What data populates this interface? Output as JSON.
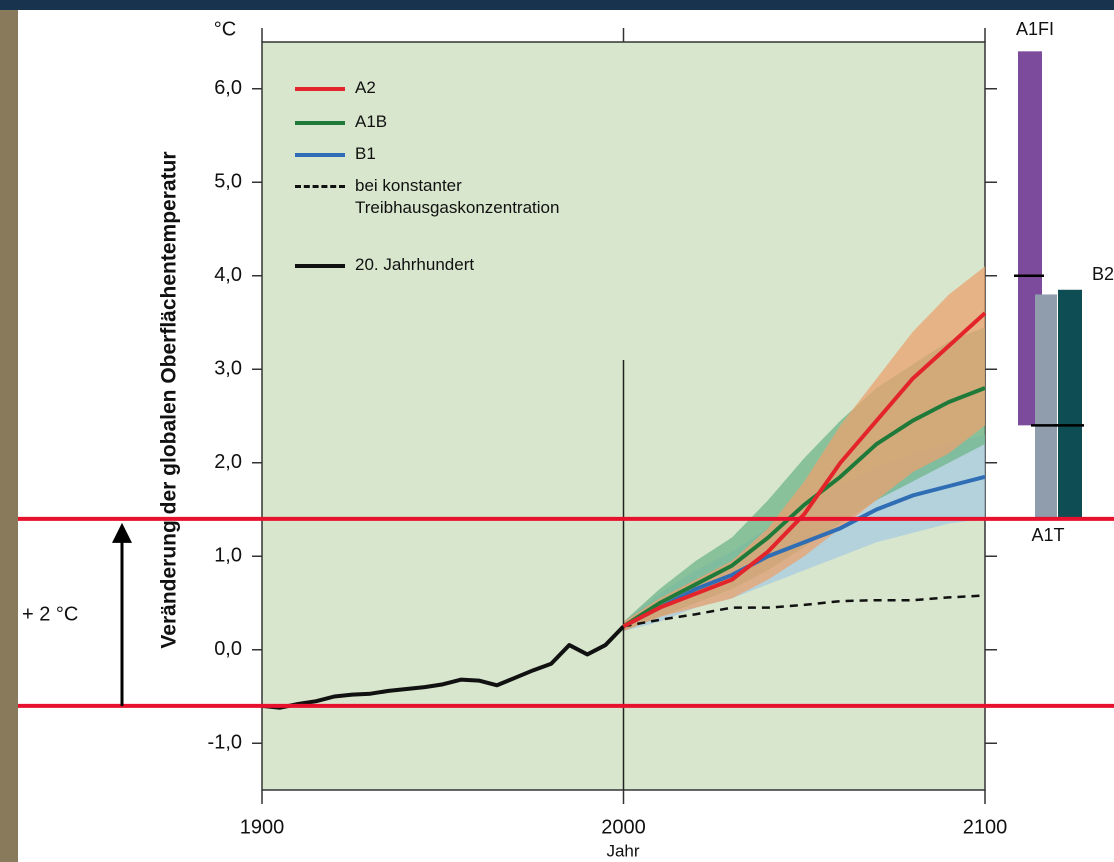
{
  "chart_data": {
    "type": "line",
    "y_unit": "°C",
    "y_label": "Veränderung der globalen Oberflächentemperatur",
    "x_label": "Jahr",
    "xlim": [
      1900,
      2100
    ],
    "xticks": [
      1900,
      2000,
      2100
    ],
    "ylim": [
      -1.5,
      6.5
    ],
    "yticks": [
      {
        "value": -1,
        "label": "-1,0"
      },
      {
        "value": 0,
        "label": "0,0"
      },
      {
        "value": 1,
        "label": "1,0"
      },
      {
        "value": 2,
        "label": "2,0"
      },
      {
        "value": 3,
        "label": "3,0"
      },
      {
        "value": 4,
        "label": "4,0"
      },
      {
        "value": 5,
        "label": "5,0"
      },
      {
        "value": 6,
        "label": "6,0"
      }
    ],
    "series": [
      {
        "name": "A2",
        "color": "#e3242b",
        "band_color": "#eba26f",
        "dashed": false,
        "x": [
          2000,
          2010,
          2020,
          2030,
          2040,
          2050,
          2060,
          2070,
          2080,
          2090,
          2100
        ],
        "values": [
          0.25,
          0.45,
          0.6,
          0.75,
          1.05,
          1.45,
          2.0,
          2.45,
          2.9,
          3.25,
          3.6
        ],
        "lower": [
          0.2,
          0.35,
          0.45,
          0.55,
          0.75,
          1.0,
          1.3,
          1.6,
          1.9,
          2.1,
          2.4
        ],
        "upper": [
          0.3,
          0.55,
          0.75,
          0.95,
          1.3,
          1.8,
          2.4,
          2.9,
          3.4,
          3.8,
          4.1
        ]
      },
      {
        "name": "A1B",
        "color": "#1f7a3a",
        "band_color": "#6fb489",
        "dashed": false,
        "x": [
          2000,
          2010,
          2020,
          2030,
          2040,
          2050,
          2060,
          2070,
          2080,
          2090,
          2100
        ],
        "values": [
          0.25,
          0.5,
          0.7,
          0.9,
          1.2,
          1.55,
          1.85,
          2.2,
          2.45,
          2.65,
          2.8
        ],
        "lower": [
          0.2,
          0.35,
          0.5,
          0.65,
          0.85,
          1.1,
          1.35,
          1.6,
          1.8,
          2.0,
          2.2
        ],
        "upper": [
          0.3,
          0.65,
          0.95,
          1.2,
          1.6,
          2.05,
          2.45,
          2.8,
          3.05,
          3.3,
          3.45
        ]
      },
      {
        "name": "B1",
        "color": "#2f6db5",
        "band_color": "#a8cbe0",
        "dashed": false,
        "x": [
          2000,
          2010,
          2020,
          2030,
          2040,
          2050,
          2060,
          2070,
          2080,
          2090,
          2100
        ],
        "values": [
          0.25,
          0.45,
          0.65,
          0.8,
          1.0,
          1.15,
          1.3,
          1.5,
          1.65,
          1.75,
          1.85
        ],
        "lower": [
          0.2,
          0.3,
          0.45,
          0.55,
          0.7,
          0.85,
          1.0,
          1.15,
          1.25,
          1.35,
          1.4
        ],
        "upper": [
          0.3,
          0.6,
          0.85,
          1.05,
          1.3,
          1.55,
          1.75,
          1.95,
          2.1,
          2.2,
          2.3
        ]
      },
      {
        "name": "bei konstanter Treibhausgaskonzentration",
        "color": "#111111",
        "dashed": true,
        "x": [
          2000,
          2010,
          2020,
          2030,
          2040,
          2050,
          2060,
          2070,
          2080,
          2090,
          2100
        ],
        "values": [
          0.25,
          0.32,
          0.38,
          0.45,
          0.45,
          0.48,
          0.52,
          0.53,
          0.53,
          0.56,
          0.58
        ]
      },
      {
        "name": "20. Jahrhundert",
        "color": "#111111",
        "dashed": false,
        "x": [
          1900,
          1905,
          1910,
          1915,
          1920,
          1925,
          1930,
          1935,
          1940,
          1945,
          1950,
          1955,
          1960,
          1965,
          1970,
          1975,
          1980,
          1985,
          1990,
          1995,
          2000
        ],
        "values": [
          -0.6,
          -0.62,
          -0.58,
          -0.55,
          -0.5,
          -0.48,
          -0.47,
          -0.44,
          -0.42,
          -0.4,
          -0.37,
          -0.32,
          -0.33,
          -0.38,
          -0.3,
          -0.22,
          -0.15,
          0.05,
          -0.05,
          0.05,
          0.25
        ]
      }
    ],
    "ranges": [
      {
        "name": "A1FI",
        "color": "#7d4b9c",
        "low": 2.4,
        "high": 6.4,
        "best": 4.0
      },
      {
        "name": "A1T",
        "color": "#8f9dac",
        "low": 1.4,
        "high": 3.8,
        "best": 2.4
      },
      {
        "name": "B2",
        "color": "#0f4d55",
        "low": 1.4,
        "high": 3.85,
        "best": 2.4
      }
    ],
    "vline": 2000,
    "reference_lines": [
      -0.6,
      1.4
    ],
    "reference_color": "#e8112d",
    "annotation": "+ 2 °C"
  }
}
